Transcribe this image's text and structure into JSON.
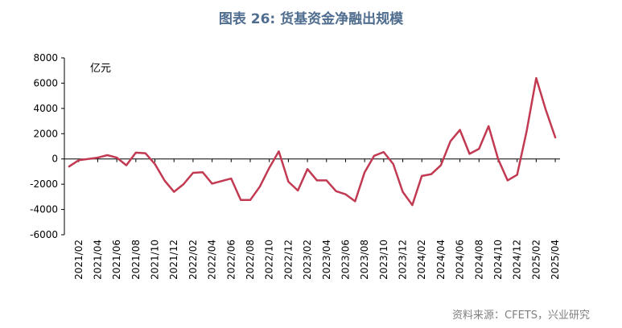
{
  "title": "图表 26: 货基资金净融出规模",
  "source": "资料来源：CFETS，兴业研究",
  "chart_data": {
    "type": "line",
    "unit_label": "亿元",
    "ylim": [
      -6000,
      8000
    ],
    "yticks": [
      8000,
      6000,
      4000,
      2000,
      0,
      -2000,
      -4000,
      -6000
    ],
    "grid": false,
    "x": [
      "2021/01",
      "2021/02",
      "2021/03",
      "2021/04",
      "2021/05",
      "2021/06",
      "2021/07",
      "2021/08",
      "2021/09",
      "2021/10",
      "2021/11",
      "2021/12",
      "2022/01",
      "2022/02",
      "2022/03",
      "2022/04",
      "2022/05",
      "2022/06",
      "2022/07",
      "2022/08",
      "2022/09",
      "2022/10",
      "2022/11",
      "2022/12",
      "2023/01",
      "2023/02",
      "2023/03",
      "2023/04",
      "2023/05",
      "2023/06",
      "2023/07",
      "2023/08",
      "2023/09",
      "2023/10",
      "2023/11",
      "2023/12",
      "2024/01",
      "2024/02",
      "2024/03",
      "2024/04",
      "2024/05",
      "2024/06",
      "2024/07",
      "2024/08",
      "2024/09",
      "2024/10",
      "2024/11",
      "2024/12",
      "2025/01",
      "2025/02",
      "2025/03",
      "2025/04"
    ],
    "xtick_labels": [
      "2021/02",
      "2021/04",
      "2021/06",
      "2021/08",
      "2021/10",
      "2021/12",
      "2022/02",
      "2022/04",
      "2022/06",
      "2022/08",
      "2022/10",
      "2022/12",
      "2023/02",
      "2023/04",
      "2023/06",
      "2023/08",
      "2023/10",
      "2023/12",
      "2024/02",
      "2024/04",
      "2024/06",
      "2024/08",
      "2024/10",
      "2024/12",
      "2025/02",
      "2025/04"
    ],
    "series": [
      {
        "color": "#c23a52",
        "values": [
          -600,
          -100,
          0,
          100,
          300,
          100,
          -500,
          500,
          450,
          -400,
          -1700,
          -2600,
          -2000,
          -1100,
          -1050,
          -1950,
          -1750,
          -1550,
          -3250,
          -3250,
          -2200,
          -700,
          600,
          -1800,
          -2500,
          -800,
          -1700,
          -1700,
          -2550,
          -2800,
          -3350,
          -1050,
          250,
          550,
          -400,
          -2600,
          -3650,
          -1350,
          -1200,
          -500,
          1400,
          2300,
          400,
          800,
          2600,
          0,
          -1700,
          -1250,
          2200,
          6400,
          3900,
          1700
        ]
      }
    ]
  }
}
